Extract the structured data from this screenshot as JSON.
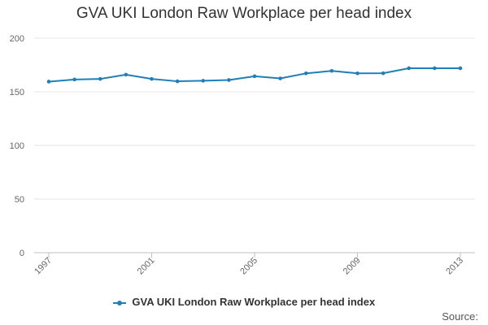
{
  "chart_data": {
    "type": "line",
    "title": "GVA UKI London Raw Workplace per head index",
    "xlabel": "",
    "ylabel": "",
    "x": [
      1997,
      1998,
      1999,
      2000,
      2001,
      2002,
      2003,
      2004,
      2005,
      2006,
      2007,
      2008,
      2009,
      2010,
      2011,
      2012,
      2013
    ],
    "x_tick_labels": [
      "1997",
      "2001",
      "2005",
      "2009",
      "2013"
    ],
    "y_tick_labels": [
      "0",
      "50",
      "100",
      "150",
      "200"
    ],
    "ylim": [
      0,
      200
    ],
    "xlim": [
      1997,
      2013
    ],
    "grid": true,
    "series": [
      {
        "name": "GVA UKI London Raw Workplace per head index",
        "color": "#1f7fb8",
        "values": [
          159.5,
          161.5,
          162,
          166,
          162,
          159.8,
          160.3,
          161,
          164.5,
          162.5,
          167.2,
          169.5,
          167.2,
          167.3,
          172,
          172,
          172
        ]
      }
    ],
    "legend_position": "bottom-center",
    "source_label": "Source:"
  }
}
